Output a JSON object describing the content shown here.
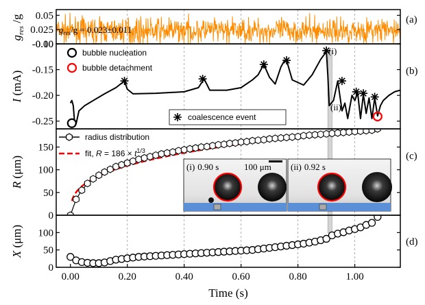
{
  "chart_data": {
    "type": "line",
    "x_axis": {
      "label": "Time (s)",
      "range": [
        -0.05,
        1.16
      ],
      "ticks": [
        0.0,
        0.2,
        0.4,
        0.6,
        0.8,
        1.0
      ],
      "tick_labels": [
        "0.00",
        "0.20",
        "0.40",
        "0.60",
        "0.80",
        "1.00"
      ],
      "grid": true
    },
    "highlight_band": {
      "x": [
        0.905,
        0.92
      ]
    },
    "panels": [
      {
        "id": "a",
        "panel_label": "(a)",
        "ylabel_main": "g",
        "ylabel_sub": "res",
        "ylabel_rest": " /g",
        "ylim": [
          0.0,
          0.06
        ],
        "yticks": [
          0.0,
          0.025,
          0.05
        ],
        "ytick_labels": [
          "0.00",
          "0.025",
          "0.05"
        ],
        "annotation_main": "g",
        "annotation_sub": "res",
        "annotation_rest": "/g = 0.023±0.011",
        "series": [
          {
            "style": "noise",
            "color": "#ff8c00",
            "mean": 0.023,
            "std": 0.011
          }
        ]
      },
      {
        "id": "b",
        "panel_label": "(b)",
        "ylabel_main": "I",
        "ylabel_rest": " (mA)",
        "ylim": [
          -0.265,
          -0.1
        ],
        "yticks": [
          -0.25,
          -0.2,
          -0.15,
          -0.1
        ],
        "ytick_labels": [
          "-0.25",
          "-0.20",
          "-0.15",
          "-0.10"
        ],
        "legend": [
          {
            "label": "bubble nucleation",
            "marker": "circle",
            "color": "#000000"
          },
          {
            "label": "bubble detachment",
            "marker": "circle",
            "color": "#ff0000"
          }
        ],
        "legend2": {
          "label": "coalescence event",
          "marker": "star"
        },
        "annotations": [
          {
            "text": "(i)",
            "x": 0.905,
            "y": -0.115
          },
          {
            "text": "(ii)",
            "x": 0.915,
            "y": -0.225
          }
        ],
        "series": [
          {
            "name": "current",
            "color": "#000000",
            "x": [
              0.0,
              0.005,
              0.01,
              0.015,
              0.02,
              0.03,
              0.05,
              0.08,
              0.12,
              0.16,
              0.19,
              0.2,
              0.22,
              0.3,
              0.4,
              0.45,
              0.47,
              0.49,
              0.55,
              0.6,
              0.64,
              0.66,
              0.68,
              0.7,
              0.72,
              0.74,
              0.75,
              0.76,
              0.78,
              0.82,
              0.85,
              0.88,
              0.9,
              0.905,
              0.91,
              0.925,
              0.94,
              0.955,
              0.965,
              0.975,
              0.99,
              1.0,
              1.01,
              1.02,
              1.03,
              1.04,
              1.05,
              1.06,
              1.07,
              1.08,
              1.09,
              1.1,
              1.12,
              1.14,
              1.16
            ],
            "y": [
              -0.215,
              -0.21,
              -0.22,
              -0.255,
              -0.255,
              -0.23,
              -0.22,
              -0.21,
              -0.197,
              -0.185,
              -0.172,
              -0.188,
              -0.197,
              -0.196,
              -0.193,
              -0.185,
              -0.168,
              -0.19,
              -0.19,
              -0.185,
              -0.17,
              -0.16,
              -0.14,
              -0.165,
              -0.178,
              -0.145,
              -0.135,
              -0.132,
              -0.17,
              -0.18,
              -0.16,
              -0.13,
              -0.115,
              -0.16,
              -0.22,
              -0.21,
              -0.172,
              -0.23,
              -0.215,
              -0.245,
              -0.2,
              -0.21,
              -0.195,
              -0.245,
              -0.198,
              -0.235,
              -0.205,
              -0.245,
              -0.205,
              -0.24,
              -0.22,
              -0.21,
              -0.2,
              -0.193,
              -0.19
            ]
          }
        ],
        "nucleation_points": [
          {
            "x": 0.005,
            "y": -0.254
          }
        ],
        "detachment_points": [
          {
            "x": 1.08,
            "y": -0.241
          }
        ],
        "coalescence_points": [
          {
            "x": 0.19,
            "y": -0.172
          },
          {
            "x": 0.465,
            "y": -0.168
          },
          {
            "x": 0.68,
            "y": -0.14
          },
          {
            "x": 0.76,
            "y": -0.132
          },
          {
            "x": 0.9,
            "y": -0.113
          },
          {
            "x": 0.955,
            "y": -0.172
          },
          {
            "x": 1.005,
            "y": -0.193
          },
          {
            "x": 1.03,
            "y": -0.196
          },
          {
            "x": 1.07,
            "y": -0.203
          }
        ]
      },
      {
        "id": "c",
        "panel_label": "(c)",
        "ylabel_main": "R",
        "ylabel_rest": " (μm)",
        "ylim": [
          0,
          190
        ],
        "yticks": [
          0,
          50,
          100,
          150
        ],
        "ytick_labels": [
          "0",
          "50",
          "100",
          "150"
        ],
        "legend": [
          {
            "label": "radius distribution",
            "marker": "hexagon"
          },
          {
            "label_main": "fit, ",
            "label_italic": "R",
            "label_rest": " = 186 × ",
            "label_t": "t",
            "label_sup": "1/3",
            "style": "dashed",
            "color": "#ff0000"
          }
        ],
        "fit": {
          "coefficient": 186,
          "exponent": 0.3333
        },
        "series": [
          {
            "name": "radius distribution",
            "x": [
              0.0,
              0.02,
              0.04,
              0.06,
              0.08,
              0.1,
              0.12,
              0.14,
              0.16,
              0.18,
              0.2,
              0.22,
              0.24,
              0.26,
              0.28,
              0.3,
              0.32,
              0.34,
              0.36,
              0.38,
              0.4,
              0.42,
              0.44,
              0.46,
              0.48,
              0.5,
              0.52,
              0.54,
              0.56,
              0.58,
              0.6,
              0.62,
              0.64,
              0.66,
              0.68,
              0.7,
              0.72,
              0.74,
              0.76,
              0.78,
              0.8,
              0.82,
              0.84,
              0.86,
              0.88,
              0.9,
              0.92,
              0.94,
              0.96,
              0.98,
              1.0,
              1.02,
              1.04,
              1.06,
              1.08
            ],
            "y": [
              0,
              35,
              55,
              70,
              80,
              88,
              95,
              101,
              107,
              111,
              115,
              119,
              123,
              126,
              129,
              132,
              135,
              137,
              139,
              142,
              144,
              146,
              148,
              150,
              151,
              153,
              155,
              156,
              158,
              159,
              161,
              162,
              164,
              165,
              166,
              168,
              169,
              170,
              171,
              172,
              173,
              175,
              176,
              177,
              178,
              179,
              180,
              181,
              182,
              183,
              184,
              185,
              186,
              187,
              190
            ]
          }
        ],
        "inset_labels": [
          {
            "label": "(i)",
            "time": "0.90 s"
          },
          {
            "label": "(ii)",
            "time": "0.92 s"
          }
        ],
        "scale_bar_label": "100 μm"
      },
      {
        "id": "d",
        "panel_label": "(d)",
        "ylabel_main": "X",
        "ylabel_rest": " (μm)",
        "ylim": [
          0,
          150
        ],
        "yticks": [
          0,
          50,
          100
        ],
        "ytick_labels": [
          "0",
          "50",
          "100"
        ],
        "series": [
          {
            "name": "X",
            "x": [
              0.0,
              0.02,
              0.04,
              0.06,
              0.08,
              0.1,
              0.12,
              0.14,
              0.16,
              0.18,
              0.2,
              0.22,
              0.24,
              0.26,
              0.28,
              0.3,
              0.32,
              0.34,
              0.36,
              0.38,
              0.4,
              0.42,
              0.44,
              0.46,
              0.48,
              0.5,
              0.52,
              0.54,
              0.56,
              0.58,
              0.6,
              0.62,
              0.64,
              0.66,
              0.68,
              0.7,
              0.72,
              0.74,
              0.76,
              0.78,
              0.8,
              0.82,
              0.84,
              0.86,
              0.88,
              0.9,
              0.92,
              0.94,
              0.96,
              0.98,
              1.0,
              1.02,
              1.04,
              1.06,
              1.08
            ],
            "y": [
              30,
              20,
              15,
              13,
              12,
              12,
              14,
              18,
              22,
              24,
              26,
              28,
              30,
              31,
              32,
              33,
              34,
              35,
              36,
              37,
              38,
              39,
              40,
              41,
              42,
              43,
              44,
              45,
              46,
              47,
              48,
              49,
              50,
              52,
              54,
              56,
              58,
              60,
              62,
              64,
              66,
              68,
              71,
              74,
              78,
              82,
              92,
              97,
              101,
              106,
              110,
              115,
              122,
              128,
              145
            ]
          }
        ]
      }
    ]
  }
}
